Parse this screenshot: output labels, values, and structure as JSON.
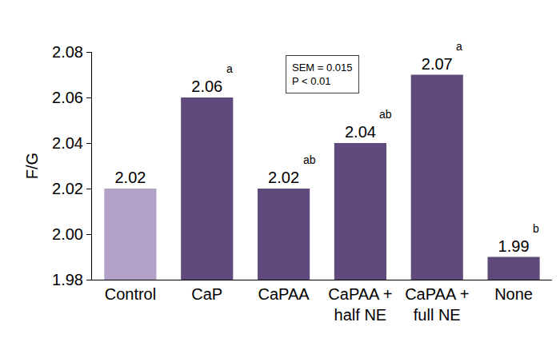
{
  "chart_data": {
    "type": "bar",
    "y_label": "F/G",
    "categories": [
      "Control",
      "CaP",
      "CaPAA",
      "CaPAA +\nhalf NE",
      "CaPAA +\nfull NE",
      "None"
    ],
    "values": [
      2.02,
      2.06,
      2.02,
      2.04,
      2.07,
      1.99
    ],
    "colors": [
      "#b3a2c7",
      "#604a7b",
      "#604a7b",
      "#604a7b",
      "#604a7b",
      "#604a7b"
    ],
    "significance_letters": [
      null,
      "a",
      "ab",
      "ab",
      "a",
      "b"
    ],
    "annotations": [
      "SEM = 0.015",
      "P < 0.01"
    ],
    "ylim": [
      1.98,
      2.08
    ],
    "yticks": [
      1.98,
      {
        "value": 2,
        "label": "2.00"
      },
      2.02,
      2.04,
      2.06,
      2.08
    ],
    "data_labels": true,
    "grid": false
  }
}
